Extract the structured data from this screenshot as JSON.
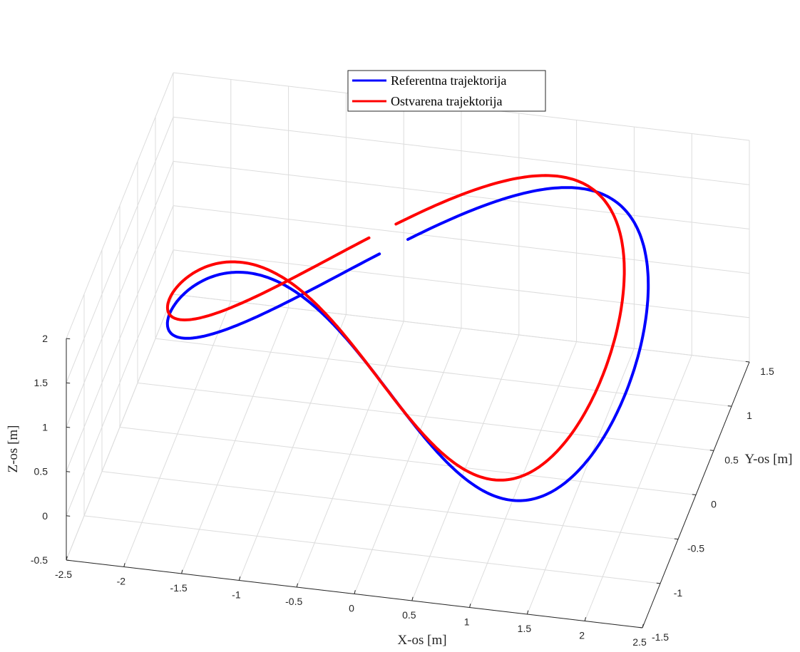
{
  "chart_data": {
    "type": "line",
    "projection": "3d",
    "grid": true,
    "legend_position": "top-center",
    "xlabel": "X-os [m]",
    "ylabel": "Y-os [m]",
    "zlabel": "Z-os [m]",
    "xlim": [
      -2.5,
      2.5
    ],
    "ylim": [
      -1.5,
      1.5
    ],
    "zlim": [
      -0.5,
      2
    ],
    "xticks": [
      "-2.5",
      "-2",
      "-1.5",
      "-1",
      "-0.5",
      "0",
      "0.5",
      "1",
      "1.5",
      "2",
      "2.5"
    ],
    "yticks": [
      "-1.5",
      "-1",
      "-0.5",
      "0",
      "0.5",
      "1",
      "1.5"
    ],
    "zticks": [
      "-0.5",
      "0",
      "0.5",
      "1",
      "1.5",
      "2"
    ],
    "series": [
      {
        "name": "Referentna trajektorija",
        "color": "#0000ff",
        "curve": "figure-eight",
        "x_amplitude": 2.0,
        "y_amplitude": 1.0,
        "z_mean": 1.0,
        "z_amplitude": 1.0,
        "x_offset": 0.0,
        "y_offset": 0.0
      },
      {
        "name": "Ostvarena trajektorija",
        "color": "#ff0000",
        "curve": "figure-eight",
        "x_amplitude": 1.9,
        "y_amplitude": 0.95,
        "z_mean": 1.0,
        "z_amplitude": 1.0,
        "x_offset": -0.15,
        "y_offset": 0.15
      }
    ]
  }
}
